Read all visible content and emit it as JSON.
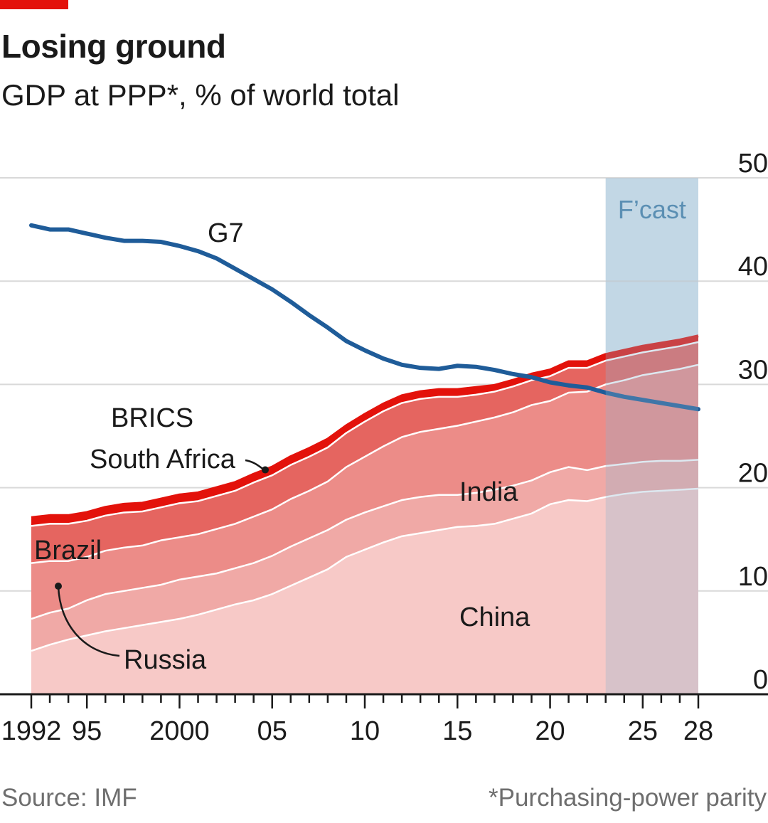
{
  "header": {
    "title": "Losing ground",
    "subtitle": "GDP at PPP*, % of world total"
  },
  "footer": {
    "source": "Source: IMF",
    "note": "*Purchasing-power parity"
  },
  "colors": {
    "china": "#f7c9c7",
    "russia": "#f0a9a6",
    "india": "#ec8c88",
    "brazil": "#e56560",
    "south_africa": "#e3120b",
    "g7": "#1f5c99",
    "forecast_shade": "#9cbfd6",
    "forecast_label": "#5b8fb3",
    "gridline": "#d9d9d9"
  },
  "chart_data": {
    "type": "area",
    "stacked": true,
    "x": [
      1992,
      1993,
      1994,
      1995,
      1996,
      1997,
      1998,
      1999,
      2000,
      2001,
      2002,
      2003,
      2004,
      2005,
      2006,
      2007,
      2008,
      2009,
      2010,
      2011,
      2012,
      2013,
      2014,
      2015,
      2016,
      2017,
      2018,
      2019,
      2020,
      2021,
      2022,
      2023,
      2024,
      2025,
      2026,
      2027,
      2028
    ],
    "x_ticks": [
      1992,
      1995,
      2000,
      2005,
      2010,
      2015,
      2020,
      2025,
      2028
    ],
    "x_tick_labels": [
      "1992",
      "95",
      "2000",
      "05",
      "10",
      "15",
      "20",
      "25",
      "28"
    ],
    "ylim": [
      0,
      50
    ],
    "y_ticks": [
      0,
      10,
      20,
      30,
      40,
      50
    ],
    "y_axis_position": "right",
    "grid": true,
    "forecast": {
      "from": 2023,
      "to": 2028,
      "label": "F’cast"
    },
    "series": [
      {
        "name": "China",
        "values": [
          4.2,
          4.8,
          5.3,
          5.7,
          6.1,
          6.4,
          6.7,
          7.0,
          7.3,
          7.7,
          8.2,
          8.7,
          9.1,
          9.7,
          10.5,
          11.3,
          12.1,
          13.3,
          14.0,
          14.7,
          15.3,
          15.6,
          15.9,
          16.2,
          16.3,
          16.5,
          17.0,
          17.5,
          18.4,
          18.8,
          18.7,
          19.1,
          19.4,
          19.6,
          19.7,
          19.8,
          19.9
        ]
      },
      {
        "name": "Russia",
        "values": [
          3.1,
          3.1,
          3.0,
          3.4,
          3.6,
          3.6,
          3.6,
          3.6,
          3.8,
          3.7,
          3.5,
          3.5,
          3.6,
          3.7,
          3.8,
          3.8,
          3.8,
          3.6,
          3.6,
          3.5,
          3.5,
          3.5,
          3.4,
          3.1,
          3.2,
          3.3,
          3.2,
          3.2,
          3.1,
          3.2,
          3.0,
          3.0,
          2.9,
          2.9,
          2.9,
          2.8,
          2.8
        ]
      },
      {
        "name": "India",
        "values": [
          5.4,
          5.0,
          4.6,
          4.2,
          4.2,
          4.2,
          4.1,
          4.3,
          4.1,
          4.1,
          4.3,
          4.3,
          4.5,
          4.5,
          4.6,
          4.6,
          4.7,
          5.1,
          5.4,
          5.8,
          6.1,
          6.3,
          6.4,
          6.7,
          6.9,
          7.0,
          7.1,
          7.3,
          6.9,
          7.2,
          7.6,
          7.9,
          8.1,
          8.4,
          8.6,
          8.9,
          9.2
        ]
      },
      {
        "name": "Brazil",
        "values": [
          3.6,
          3.6,
          3.6,
          3.5,
          3.4,
          3.4,
          3.3,
          3.2,
          3.3,
          3.2,
          3.2,
          3.2,
          3.3,
          3.3,
          3.3,
          3.3,
          3.3,
          3.3,
          3.4,
          3.4,
          3.3,
          3.2,
          3.1,
          2.8,
          2.6,
          2.5,
          2.5,
          2.4,
          2.4,
          2.4,
          2.3,
          2.3,
          2.3,
          2.2,
          2.2,
          2.2,
          2.2
        ]
      },
      {
        "name": "South Africa",
        "values": [
          0.8,
          0.8,
          0.8,
          0.8,
          0.8,
          0.8,
          0.8,
          0.8,
          0.8,
          0.8,
          0.8,
          0.8,
          0.8,
          0.8,
          0.8,
          0.8,
          0.8,
          0.7,
          0.7,
          0.7,
          0.7,
          0.7,
          0.7,
          0.7,
          0.7,
          0.6,
          0.6,
          0.6,
          0.6,
          0.6,
          0.6,
          0.6,
          0.6,
          0.6,
          0.6,
          0.6,
          0.6
        ]
      },
      {
        "name": "G7",
        "type": "line",
        "values": [
          45.4,
          45.0,
          45.0,
          44.6,
          44.2,
          43.9,
          43.9,
          43.8,
          43.4,
          42.9,
          42.2,
          41.2,
          40.2,
          39.2,
          38.0,
          36.7,
          35.5,
          34.2,
          33.3,
          32.5,
          31.9,
          31.6,
          31.5,
          31.8,
          31.7,
          31.4,
          31.0,
          30.7,
          30.2,
          29.9,
          29.7,
          29.2,
          28.8,
          28.5,
          28.2,
          27.9,
          27.6
        ]
      }
    ],
    "annotations": {
      "g7": "G7",
      "brics": "BRICS",
      "south_africa": "South Africa",
      "brazil": "Brazil",
      "russia": "Russia",
      "india": "India",
      "china": "China"
    }
  }
}
